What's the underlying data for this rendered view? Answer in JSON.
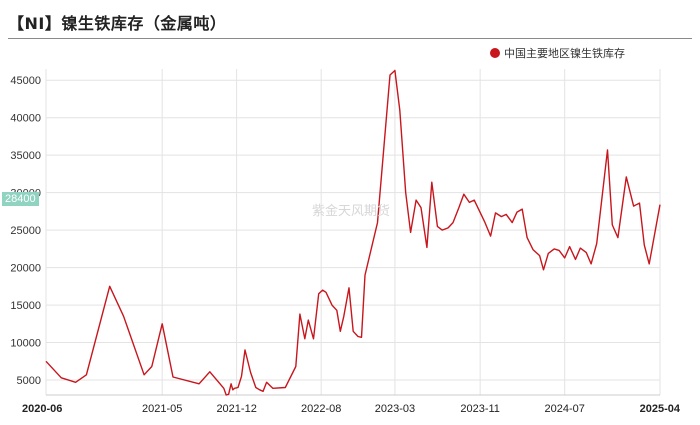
{
  "header": {
    "title": "【NI】镍生铁库存（金属吨）"
  },
  "legend": {
    "label": "中国主要地区镍生铁库存"
  },
  "watermark": "紫金天风期货",
  "last_value_badge": "28400",
  "colors": {
    "series": "#c8161d",
    "grid": "#e3e3e3",
    "badge": "#8fd3c0"
  },
  "chart_data": {
    "type": "line",
    "ylim": [
      3000,
      46500
    ],
    "yticks": [
      5000,
      10000,
      15000,
      20000,
      25000,
      30000,
      35000,
      40000,
      45000
    ],
    "x_range": [
      "2020-06",
      "2025-04"
    ],
    "xticks": [
      {
        "label": "2020-06",
        "date": "2020-06-01",
        "bold": true
      },
      {
        "label": "2021-05",
        "date": "2021-05-01",
        "bold": false
      },
      {
        "label": "2021-12",
        "date": "2021-12-01",
        "bold": false
      },
      {
        "label": "2022-08",
        "date": "2022-08-01",
        "bold": false
      },
      {
        "label": "2023-03",
        "date": "2023-03-01",
        "bold": false
      },
      {
        "label": "2023-11",
        "date": "2023-11-01",
        "bold": false
      },
      {
        "label": "2024-07",
        "date": "2024-07-01",
        "bold": false
      },
      {
        "label": "2025-04",
        "date": "2025-04-01",
        "bold": true
      }
    ],
    "grid": true,
    "legend_position": "top-right",
    "series": [
      {
        "name": "中国主要地区镍生铁库存",
        "points": [
          [
            "2020-06-01",
            7500
          ],
          [
            "2020-07-15",
            5300
          ],
          [
            "2020-08-25",
            4700
          ],
          [
            "2020-09-25",
            5700
          ],
          [
            "2020-12-01",
            17500
          ],
          [
            "2021-01-10",
            13500
          ],
          [
            "2021-03-10",
            5700
          ],
          [
            "2021-04-01",
            6800
          ],
          [
            "2021-05-01",
            12500
          ],
          [
            "2021-06-01",
            5400
          ],
          [
            "2021-08-15",
            4500
          ],
          [
            "2021-09-15",
            6100
          ],
          [
            "2021-10-25",
            3900
          ],
          [
            "2021-11-01",
            3000
          ],
          [
            "2021-11-08",
            3100
          ],
          [
            "2021-11-15",
            4500
          ],
          [
            "2021-11-20",
            3700
          ],
          [
            "2021-11-25",
            3900
          ],
          [
            "2021-12-05",
            4000
          ],
          [
            "2021-12-15",
            5500
          ],
          [
            "2021-12-25",
            9000
          ],
          [
            "2022-01-10",
            6000
          ],
          [
            "2022-01-25",
            4000
          ],
          [
            "2022-02-05",
            3700
          ],
          [
            "2022-02-15",
            3500
          ],
          [
            "2022-02-25",
            4700
          ],
          [
            "2022-03-15",
            3900
          ],
          [
            "2022-04-20",
            4000
          ],
          [
            "2022-05-20",
            6800
          ],
          [
            "2022-06-01",
            13800
          ],
          [
            "2022-06-15",
            10500
          ],
          [
            "2022-06-25",
            13000
          ],
          [
            "2022-07-10",
            10500
          ],
          [
            "2022-07-25",
            16500
          ],
          [
            "2022-08-05",
            17000
          ],
          [
            "2022-08-15",
            16700
          ],
          [
            "2022-09-01",
            15000
          ],
          [
            "2022-09-15",
            14300
          ],
          [
            "2022-09-25",
            11500
          ],
          [
            "2022-10-05",
            13500
          ],
          [
            "2022-10-20",
            17300
          ],
          [
            "2022-11-01",
            11500
          ],
          [
            "2022-11-15",
            10800
          ],
          [
            "2022-11-25",
            10700
          ],
          [
            "2022-12-05",
            19000
          ],
          [
            "2023-01-10",
            26000
          ],
          [
            "2023-02-15",
            45700
          ],
          [
            "2023-03-01",
            46300
          ],
          [
            "2023-03-15",
            41000
          ],
          [
            "2023-04-01",
            30000
          ],
          [
            "2023-04-15",
            24700
          ],
          [
            "2023-05-01",
            29000
          ],
          [
            "2023-05-15",
            28000
          ],
          [
            "2023-06-01",
            22700
          ],
          [
            "2023-06-15",
            31400
          ],
          [
            "2023-07-01",
            25500
          ],
          [
            "2023-07-15",
            25000
          ],
          [
            "2023-08-01",
            25300
          ],
          [
            "2023-08-15",
            26000
          ],
          [
            "2023-09-01",
            28000
          ],
          [
            "2023-09-15",
            29800
          ],
          [
            "2023-10-01",
            28700
          ],
          [
            "2023-10-15",
            29000
          ],
          [
            "2023-11-15",
            26000
          ],
          [
            "2023-12-01",
            24200
          ],
          [
            "2023-12-15",
            27300
          ],
          [
            "2024-01-01",
            26800
          ],
          [
            "2024-01-15",
            27100
          ],
          [
            "2024-02-01",
            26000
          ],
          [
            "2024-02-15",
            27400
          ],
          [
            "2024-03-01",
            27800
          ],
          [
            "2024-03-15",
            24000
          ],
          [
            "2024-04-01",
            22400
          ],
          [
            "2024-04-20",
            21600
          ],
          [
            "2024-05-01",
            19700
          ],
          [
            "2024-05-15",
            21900
          ],
          [
            "2024-06-01",
            22500
          ],
          [
            "2024-06-15",
            22300
          ],
          [
            "2024-07-01",
            21300
          ],
          [
            "2024-07-15",
            22800
          ],
          [
            "2024-08-01",
            21100
          ],
          [
            "2024-08-15",
            22600
          ],
          [
            "2024-09-01",
            22000
          ],
          [
            "2024-09-15",
            20500
          ],
          [
            "2024-10-01",
            23200
          ],
          [
            "2024-11-01",
            35700
          ],
          [
            "2024-11-15",
            25700
          ],
          [
            "2024-12-01",
            24000
          ],
          [
            "2024-12-25",
            32100
          ],
          [
            "2025-01-15",
            28200
          ],
          [
            "2025-02-01",
            28600
          ],
          [
            "2025-02-15",
            23000
          ],
          [
            "2025-03-01",
            20500
          ],
          [
            "2025-04-01",
            28400
          ]
        ]
      }
    ]
  }
}
